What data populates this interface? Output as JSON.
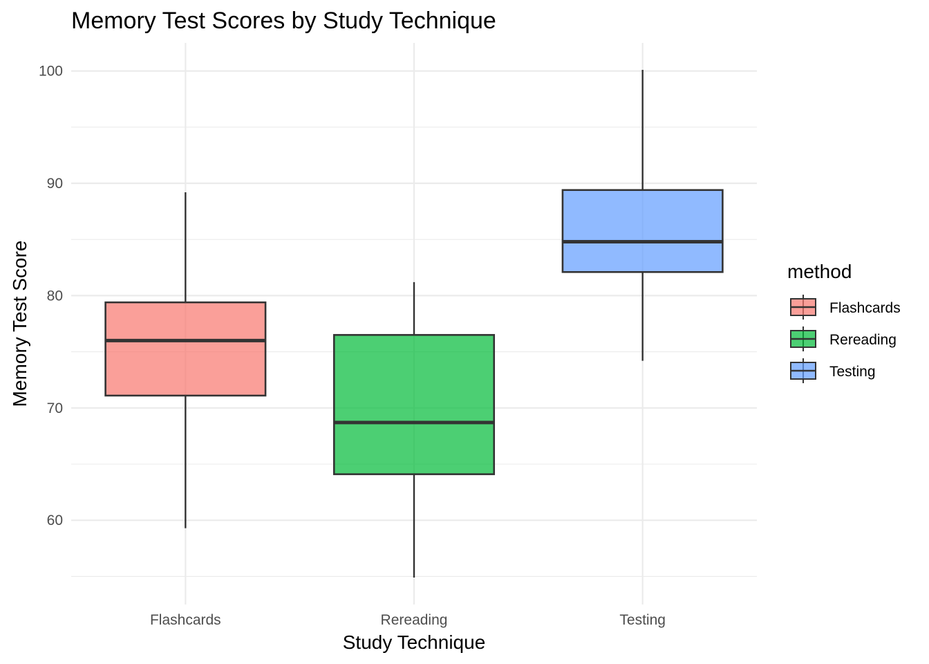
{
  "chart_data": {
    "type": "boxplot",
    "title": "Memory Test Scores by Study Technique",
    "xlabel": "Study Technique",
    "ylabel": "Memory Test Score",
    "ylim": [
      52.5,
      102.5
    ],
    "yticks": [
      60,
      70,
      80,
      90,
      100
    ],
    "yminor": [
      55,
      65,
      75,
      85,
      95
    ],
    "categories": [
      "Flashcards",
      "Rereading",
      "Testing"
    ],
    "series": [
      {
        "name": "Flashcards",
        "color": "#F8766D",
        "whisker_low": 59.3,
        "q1": 71.1,
        "median": 76.0,
        "q3": 79.4,
        "whisker_high": 89.2
      },
      {
        "name": "Rereading",
        "color": "#00BA38",
        "whisker_low": 54.9,
        "q1": 64.1,
        "median": 68.7,
        "q3": 76.5,
        "whisker_high": 81.2
      },
      {
        "name": "Testing",
        "color": "#619CFF",
        "whisker_low": 74.2,
        "q1": 82.1,
        "median": 84.8,
        "q3": 89.4,
        "whisker_high": 100.1
      }
    ],
    "legend": {
      "title": "method",
      "position": "right"
    },
    "grid": true
  }
}
